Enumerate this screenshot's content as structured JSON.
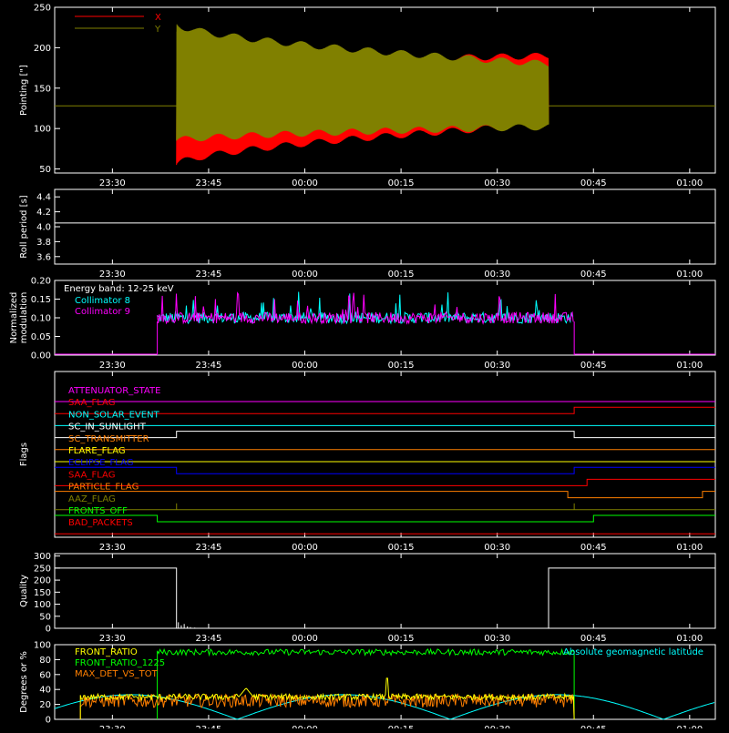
{
  "time_labels": [
    "23:30",
    "23:45",
    "00:00",
    "00:15",
    "00:30",
    "00:45",
    "01:00"
  ],
  "chart_data": [
    {
      "panel": "pointing",
      "type": "line",
      "ylabel": "Pointing [\"]",
      "ylim": [
        45,
        250
      ],
      "yticks": [
        "50",
        "100",
        "150",
        "200",
        "250"
      ],
      "time_range": [
        "23:21",
        "01:04"
      ],
      "series": [
        {
          "name": "X",
          "color": "#ff0000",
          "style": "oscillating band",
          "span": [
            "23:40",
            "00:38"
          ],
          "start_range": [
            55,
            175
          ],
          "end_range": [
            105,
            190
          ]
        },
        {
          "name": "Y",
          "color": "#808000",
          "style": "oscillating band",
          "span": [
            "23:40",
            "00:38"
          ],
          "start_range": [
            85,
            230
          ],
          "end_range": [
            102,
            180
          ]
        }
      ],
      "reference_line": {
        "y": 128,
        "color": "#808000"
      },
      "legend_position": "top-left"
    },
    {
      "panel": "roll_period",
      "type": "line",
      "ylabel": "Roll period [s]",
      "ylim": [
        3.5,
        4.5
      ],
      "yticks": [
        "3.6",
        "3.8",
        "4.0",
        "4.2",
        "4.4"
      ],
      "series": [
        {
          "color": "#ffffff",
          "constant": 4.05
        }
      ]
    },
    {
      "panel": "modulation",
      "type": "line",
      "ylabel": "Normalized modulation",
      "ylim": [
        0,
        0.2
      ],
      "yticks": [
        "0.00",
        "0.05",
        "0.10",
        "0.15",
        "0.20"
      ],
      "annotation": "Energy band: 12-25 keV",
      "series": [
        {
          "name": "Collimator 8",
          "color": "#00ffff",
          "span": [
            "23:37",
            "00:42"
          ],
          "mean": 0.1
        },
        {
          "name": "Collimator 9",
          "color": "#ff00ff",
          "span": [
            "23:37",
            "00:42"
          ],
          "mean": 0.1
        }
      ],
      "legend_position": "top-left"
    },
    {
      "panel": "flags",
      "type": "line",
      "ylabel": "Flags",
      "flags": [
        {
          "name": "ATTENUATOR_STATE",
          "color": "#ff00ff",
          "levels": [
            [
              0,
              0
            ]
          ]
        },
        {
          "name": "SAA_FLAG",
          "color": "#ff0000",
          "levels": [
            [
              0,
              0
            ],
            [
              "00:42",
              1
            ]
          ]
        },
        {
          "name": "NON_SOLAR_EVENT",
          "color": "#00ffff",
          "levels": [
            [
              0,
              0
            ]
          ]
        },
        {
          "name": "SC_IN_SUNLIGHT",
          "color": "#ffffff",
          "levels": [
            [
              0,
              0
            ],
            [
              "23:40",
              1
            ],
            [
              "00:42",
              0
            ]
          ]
        },
        {
          "name": "SC_TRANSMITTER",
          "color": "#ff7f00",
          "levels": [
            [
              0,
              0
            ]
          ]
        },
        {
          "name": "FLARE_FLAG",
          "color": "#ffff00",
          "levels": [
            [
              0,
              0
            ]
          ]
        },
        {
          "name": "ECLIPSE_FLAG",
          "color": "#0000ff",
          "levels": [
            [
              0,
              1
            ],
            [
              "23:40",
              0
            ],
            [
              "00:42",
              1
            ]
          ]
        },
        {
          "name": "SAA_FLAG",
          "color": "#ff0000",
          "levels": [
            [
              0,
              0
            ],
            [
              "00:44",
              1
            ]
          ]
        },
        {
          "name": "PARTICLE_FLAG",
          "color": "#ff7f00",
          "levels": [
            [
              0,
              1
            ],
            [
              "00:41",
              0
            ],
            [
              "01:02",
              1
            ]
          ]
        },
        {
          "name": "AAZ_FLAG",
          "color": "#808000",
          "levels": [
            [
              0,
              0
            ]
          ],
          "spikes": [
            "23:40",
            "00:42"
          ]
        },
        {
          "name": "FRONTS_OFF",
          "color": "#00ff00",
          "levels": [
            [
              0,
              1
            ],
            [
              "23:37",
              0
            ],
            [
              "00:45",
              1
            ]
          ]
        },
        {
          "name": "BAD_PACKETS",
          "color": "#ff0000",
          "levels": [
            [
              0,
              0
            ]
          ]
        }
      ]
    },
    {
      "panel": "quality",
      "type": "line",
      "ylabel": "Quality",
      "ylim": [
        0,
        310
      ],
      "yticks": [
        "0",
        "50",
        "100",
        "150",
        "200",
        "250",
        "300"
      ],
      "series": [
        {
          "color": "#ffffff",
          "segments": [
            [
              "23:21",
              "23:40",
              250
            ],
            [
              "00:38",
              "01:04",
              250
            ]
          ]
        }
      ]
    },
    {
      "panel": "geomagnetic",
      "type": "line",
      "ylabel": "Degrees or %",
      "ylim": [
        0,
        100
      ],
      "yticks": [
        "0",
        "20",
        "40",
        "60",
        "80",
        "100"
      ],
      "annotation": "Absolute geomagnetic latitude",
      "series": [
        {
          "name": "FRONT_RATIO",
          "color": "#ffff00",
          "span": [
            "23:25",
            "00:42"
          ],
          "mean": 30
        },
        {
          "name": "FRONT_RATIO_1225",
          "color": "#00ff00",
          "span": [
            "23:37",
            "00:42"
          ],
          "mean": 90
        },
        {
          "name": "MAX_DET_VS_TOT",
          "color": "#ff7f00",
          "span": [
            "23:25",
            "00:42"
          ],
          "mean": 25
        },
        {
          "name": "Absolute geomagnetic latitude",
          "color": "#00ffff",
          "curve": "abs-sin"
        }
      ],
      "legend_position": "top-left"
    }
  ]
}
